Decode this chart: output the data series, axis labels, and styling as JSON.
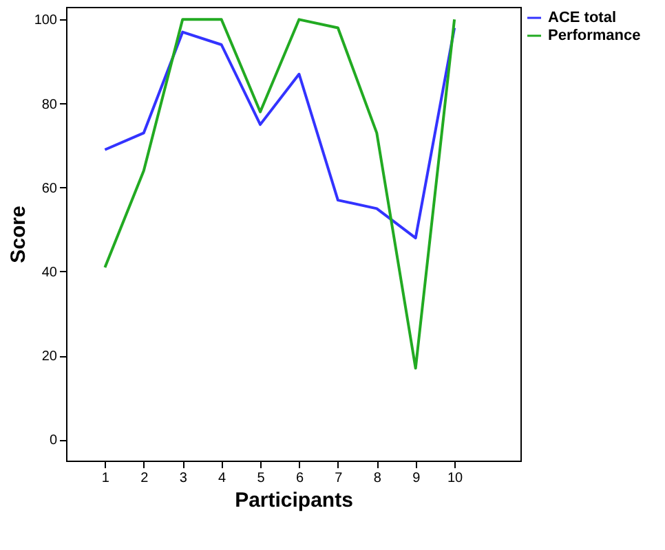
{
  "chart_data": {
    "type": "line",
    "xlabel": "Participants",
    "ylabel": "Score",
    "x": [
      1,
      2,
      3,
      4,
      5,
      6,
      7,
      8,
      9,
      10
    ],
    "series": [
      {
        "name": "ACE total",
        "color": "#3333ff",
        "values": [
          69,
          73,
          97,
          94,
          75,
          87,
          57,
          55,
          48,
          98
        ]
      },
      {
        "name": "Performance",
        "color": "#22aa22",
        "values": [
          41,
          64,
          100,
          100,
          78,
          100,
          98,
          73,
          17,
          100
        ]
      }
    ],
    "xlim": [
      0,
      11.7
    ],
    "xticks": [
      1,
      2,
      3,
      4,
      5,
      6,
      7,
      8,
      9,
      10
    ],
    "ylim": [
      -5,
      103
    ],
    "yticks": [
      0,
      20,
      40,
      60,
      80,
      100
    ],
    "grid": false,
    "legend": "top right",
    "marker": "none",
    "line_style": "solid"
  }
}
